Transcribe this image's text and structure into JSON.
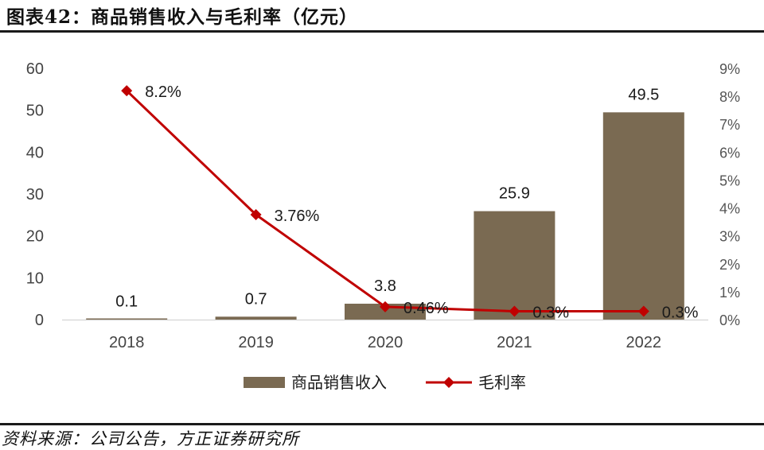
{
  "header": {
    "title": "图表42：商品销售收入与毛利率（亿元）"
  },
  "footer": {
    "source": "资料来源：公司公告，方正证券研究所"
  },
  "colors": {
    "bar": "#7a6a52",
    "line": "#c00000",
    "axis": "#d9d9d9",
    "rule": "#1a1a1a"
  },
  "chart_data": {
    "type": "bar",
    "categories": [
      "2018",
      "2019",
      "2020",
      "2021",
      "2022"
    ],
    "series": [
      {
        "name": "商品销售收入",
        "type": "bar",
        "axis": "left",
        "values": [
          0.1,
          0.7,
          3.8,
          25.9,
          49.5
        ],
        "labels": [
          "0.1",
          "0.7",
          "3.8",
          "25.9",
          "49.5"
        ]
      },
      {
        "name": "毛利率",
        "type": "line",
        "axis": "right",
        "marker": "diamond",
        "values": [
          8.2,
          3.76,
          0.46,
          0.3,
          0.3
        ],
        "labels": [
          "8.2%",
          "3.76%",
          "0.46%",
          "0.3%",
          "0.3%"
        ]
      }
    ],
    "y_left": {
      "min": 0,
      "max": 60,
      "ticks": [
        "0",
        "10",
        "20",
        "30",
        "40",
        "50",
        "60"
      ]
    },
    "y_right": {
      "min": 0,
      "max": 9,
      "ticks": [
        "0%",
        "1%",
        "2%",
        "3%",
        "4%",
        "5%",
        "6%",
        "7%",
        "8%",
        "9%"
      ]
    },
    "legend": {
      "position": "bottom",
      "items": [
        "商品销售收入",
        "毛利率"
      ]
    },
    "grid": false
  }
}
